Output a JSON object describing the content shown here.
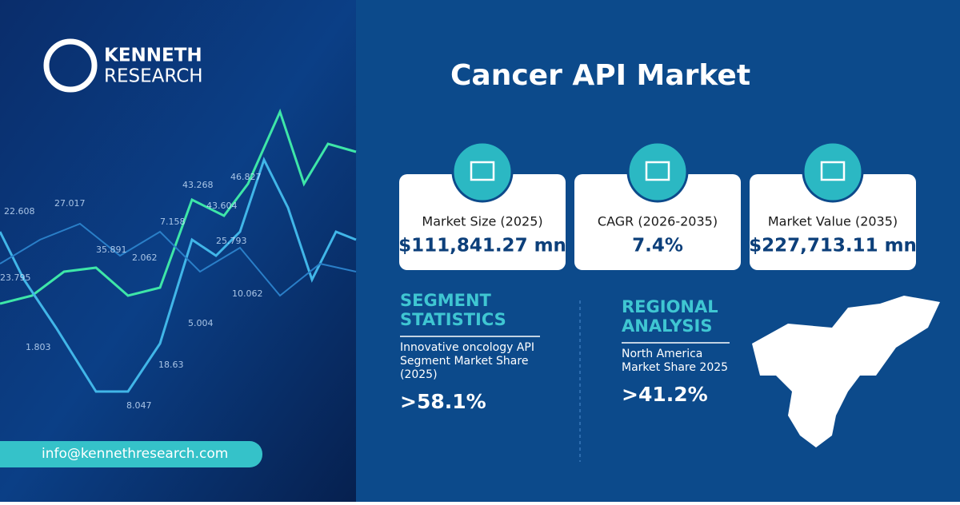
{
  "brand": {
    "line1": "KENNETH",
    "line2": "RESEARCH"
  },
  "title": "Cancer API Market",
  "cards": [
    {
      "label": "Market Size (2025)",
      "value": "$111,841.27 mn"
    },
    {
      "label": "CAGR (2026-2035)",
      "value": "7.4%"
    },
    {
      "label": "Market Value  (2035)",
      "value": "$227,713.11 mn"
    }
  ],
  "segment": {
    "heading": [
      "SEGMENT",
      "STATISTICS"
    ],
    "description": [
      "Innovative oncology API",
      "Segment Market Share",
      "(2025)"
    ],
    "value": ">58.1%"
  },
  "regional": {
    "heading": [
      "REGIONAL",
      "ANALYSIS"
    ],
    "description": [
      "North America",
      "Market Share 2025"
    ],
    "value": ">41.2%"
  },
  "contact": "info@kennethresearch.com",
  "background_labels": [
    "22.608",
    "27.017",
    "23.795",
    "35.891",
    "1.803",
    "8.047",
    "18.63",
    "2.062",
    "5.004",
    "43.268",
    "46.827",
    "7.158",
    "43.604",
    "25.793",
    "10.062"
  ]
}
